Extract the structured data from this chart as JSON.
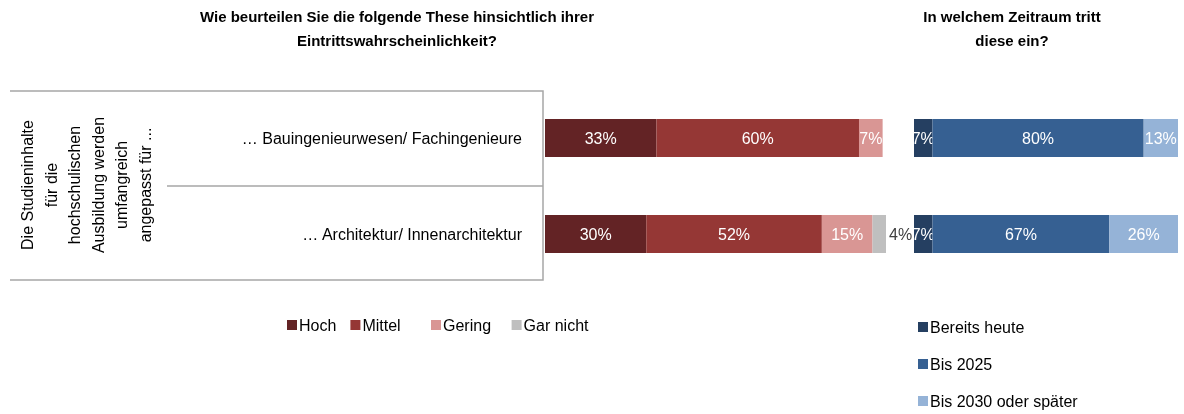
{
  "chart_data": [
    {
      "type": "bar",
      "orientation": "horizontal",
      "stacked": true,
      "title": "Wie beurteilen Sie die folgende These hinsichtlich ihrer Eintrittswahrscheinlichkeit?",
      "ylabel": "Die Studieninhalte für die hochschulischen Ausbildung werden umfangreich angepasst für ...",
      "categories": [
        "… Bauingenieurwesen/ Fachingenieure",
        "… Architektur/ Innenarchitektur"
      ],
      "series": [
        {
          "name": "Hoch",
          "color": "#632325",
          "values": [
            33,
            30
          ],
          "value_labels": [
            "33%",
            "30%"
          ]
        },
        {
          "name": "Mittel",
          "color": "#953735",
          "values": [
            60,
            52
          ],
          "value_labels": [
            "60%",
            "52%"
          ]
        },
        {
          "name": "Gering",
          "color": "#d99694",
          "values": [
            7,
            15
          ],
          "value_labels": [
            "7%",
            "15%"
          ]
        },
        {
          "name": "Gar nicht",
          "color": "#bfbfbf",
          "values": [
            null,
            4
          ],
          "value_labels": [
            null,
            "4%"
          ]
        }
      ],
      "legend": "bottom"
    },
    {
      "type": "bar",
      "orientation": "horizontal",
      "stacked": true,
      "title": "In welchem Zeitraum tritt diese ein?",
      "categories": [
        null,
        null
      ],
      "series": [
        {
          "name": "Bereits heute",
          "color": "#253f61",
          "values": [
            7,
            7
          ],
          "value_labels": [
            "7%",
            "7%"
          ]
        },
        {
          "name": "Bis 2025",
          "color": "#366092",
          "values": [
            80,
            67
          ],
          "value_labels": [
            "80%",
            "67%"
          ]
        },
        {
          "name": "Bis 2030 oder später",
          "color": "#95b3d7",
          "values": [
            13,
            26
          ],
          "value_labels": [
            "13%",
            "26%"
          ]
        }
      ],
      "legend": "bottom"
    }
  ]
}
